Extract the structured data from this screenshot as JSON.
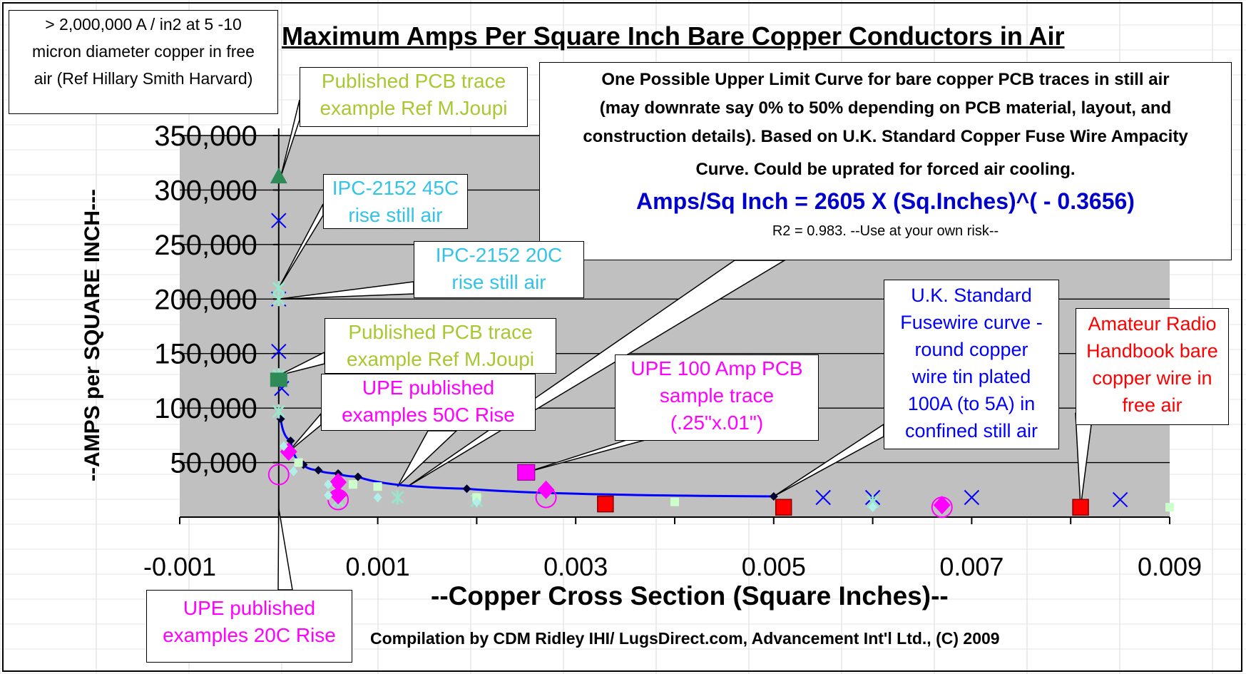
{
  "chart_data": {
    "type": "scatter",
    "title": "Maximum Amps Per Square Inch Bare Copper Conductors in Air",
    "xlabel": "--Copper Cross Section (Square Inches)--",
    "ylabel": "--AMPS per SQUARE INCH---",
    "xlim": [
      -0.001,
      0.009
    ],
    "ylim": [
      0,
      350000
    ],
    "x_ticks": [
      "-0.001",
      "0.001",
      "0.003",
      "0.005",
      "0.007",
      "0.009"
    ],
    "y_ticks": [
      "50,000",
      "100,000",
      "150,000",
      "200,000",
      "250,000",
      "300,000",
      "350,000"
    ],
    "grid": "horizontal",
    "series": [
      {
        "marker": "line-diamond",
        "color": "#0000ff",
        "x": [
          2e-05,
          0.00012,
          0.00025,
          0.0004,
          0.0006,
          0.0008,
          0.0019,
          0.005
        ],
        "y": [
          90000,
          70000,
          48000,
          43000,
          40000,
          37000,
          26000,
          19000
        ]
      },
      {
        "marker": "triangle",
        "color": "#2e8b57",
        "x": [
          0.0
        ],
        "y": [
          312000
        ]
      },
      {
        "marker": "x",
        "color": "#0000ff",
        "x": [
          0.0,
          0.0,
          0.0,
          3e-05,
          0.0055,
          0.006,
          0.007,
          0.0085
        ],
        "y": [
          272000,
          200000,
          152000,
          118000,
          18000,
          18000,
          18000,
          16000
        ]
      },
      {
        "marker": "asterisk-light",
        "color": "#99e6cc",
        "x": [
          0.0,
          0.0,
          0.0,
          0.0,
          0.0006,
          0.0012,
          0.002,
          0.006
        ],
        "y": [
          210000,
          200000,
          130000,
          97000,
          15000,
          18000,
          15000,
          14000
        ]
      },
      {
        "marker": "square-green",
        "color": "#2e8b57",
        "x": [
          0.0
        ],
        "y": [
          126000
        ]
      },
      {
        "marker": "diamond-magenta",
        "color": "#ff00ff",
        "x": [
          0.0001,
          0.0006,
          0.0006,
          0.0027,
          0.0067
        ],
        "y": [
          60000,
          32000,
          20000,
          25000,
          11000
        ]
      },
      {
        "marker": "circle-magenta",
        "color": "#ff00ff",
        "x": [
          0.0,
          0.0006,
          0.0027,
          0.0067
        ],
        "y": [
          39000,
          16000,
          18000,
          9000
        ]
      },
      {
        "marker": "square-magenta",
        "color": "#ff00ff",
        "x": [
          0.0025
        ],
        "y": [
          41000
        ]
      },
      {
        "marker": "square-red",
        "color": "#ff0000",
        "x": [
          0.0033,
          0.0051,
          0.0081
        ],
        "y": [
          12000,
          9000,
          9000
        ]
      },
      {
        "marker": "square-lightgreen",
        "color": "#ccffcc",
        "x": [
          0.0002,
          0.00075,
          0.001,
          0.002,
          0.004,
          0.009
        ],
        "y": [
          50000,
          30000,
          28000,
          18000,
          14000,
          9000
        ]
      },
      {
        "marker": "diamond-lightcyan",
        "color": "#b0f0e8",
        "x": [
          5e-05,
          0.00015,
          0.0005,
          0.0005,
          0.001,
          0.002,
          0.006
        ],
        "y": [
          65000,
          42000,
          30000,
          20000,
          18000,
          14000,
          9000
        ]
      }
    ]
  },
  "note_box": {
    "line1": "> 2,000,000 A / in2 at 5 -10",
    "line2": "micron diameter copper in free",
    "line3": "air (Ref Hillary Smith Harvard)"
  },
  "equation_box": {
    "line1": "One Possible Upper Limit Curve for  bare copper PCB  traces in still air",
    "line2": "(may downrate say 0% to 50% depending on PCB material, layout, and",
    "line3": "construction details). Based on U.K. Standard Copper Fuse Wire Ampacity",
    "line4": "Curve.  Could be uprated for forced air cooling.",
    "formula": "Amps/Sq Inch = 2605 X (Sq.Inches)^( - 0.3656)",
    "r2": "R2 = 0.983. --Use at your own risk--"
  },
  "callouts": {
    "pcb_top": {
      "line1": "Published PCB trace",
      "line2": "example Ref M.Joupi"
    },
    "ipc45": {
      "line1": "IPC-2152 45C",
      "line2": "rise still air"
    },
    "ipc20": {
      "line1": "IPC-2152 20C",
      "line2": "rise still air"
    },
    "pcb_mid": {
      "line1": "Published PCB trace",
      "line2": "example Ref M.Joupi"
    },
    "upe50": {
      "line1": "UPE published",
      "line2": "examples 50C Rise"
    },
    "upe100": {
      "line1": "UPE 100 Amp PCB",
      "line2": "sample trace",
      "line3": "(.25\"x.01\")"
    },
    "ukfuse": {
      "line1": "U.K. Standard",
      "line2": "Fusewire curve -",
      "line3": "round copper",
      "line4": "wire tin plated",
      "line5": "100A (to 5A) in",
      "line6": "confined still air"
    },
    "amateur": {
      "line1": "Amateur Radio",
      "line2": "Handbook bare",
      "line3": "copper wire  in",
      "line4": "free air"
    },
    "upe20": {
      "line1": "UPE published",
      "line2": "examples 20C Rise"
    }
  },
  "credit": "Compilation by CDM Ridley IHI/ LugsDirect.com, Advancement Int'l Ltd., (C) 2009"
}
